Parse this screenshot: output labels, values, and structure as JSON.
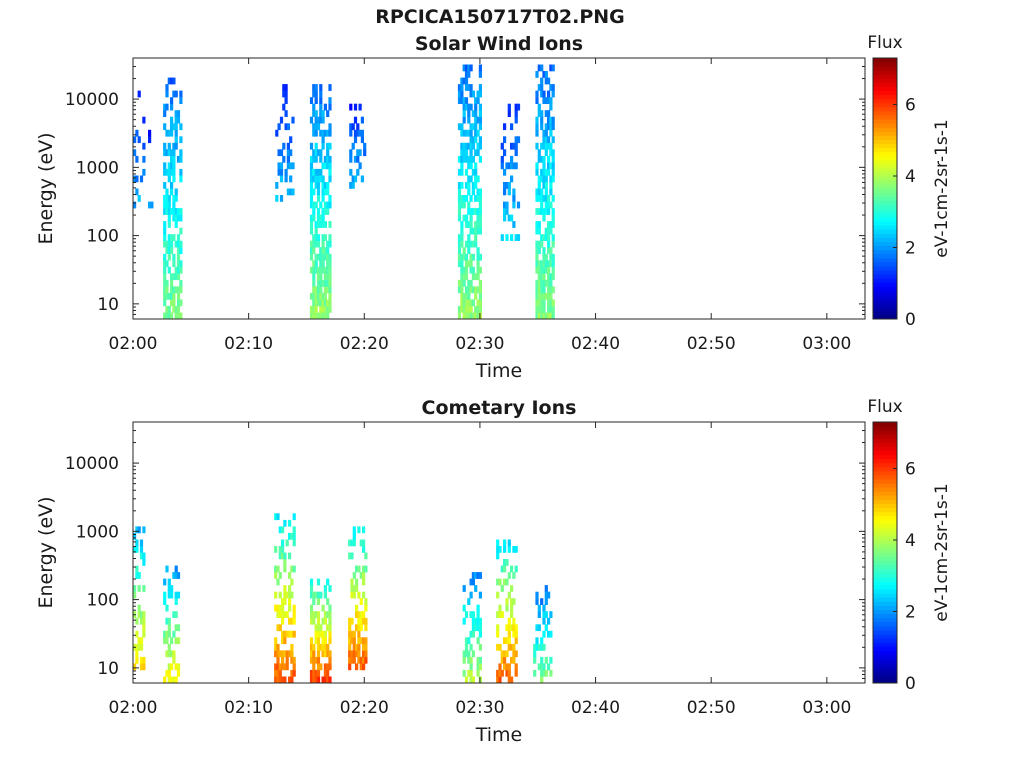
{
  "figure": {
    "title": "RPCICA150717T02.PNG"
  },
  "colors": {
    "colormap": "jet",
    "axis": "#262626",
    "background": "#ffffff"
  },
  "chart_data": [
    {
      "type": "heatmap",
      "title": "Solar Wind Ions",
      "xlabel": "Time",
      "ylabel": "Energy (eV)",
      "x_ticks": [
        "02:00",
        "02:10",
        "02:20",
        "02:30",
        "02:40",
        "02:50",
        "03:00"
      ],
      "x_range_minutes": [
        0,
        63.3
      ],
      "y_scale": "log",
      "y_range_ev": [
        6,
        40000
      ],
      "y_ticks": [
        10,
        100,
        1000,
        10000
      ],
      "y_tick_labels": [
        "10",
        "100",
        "1000",
        "10000"
      ],
      "colorbar": {
        "title": "Flux",
        "label": "eV-1cm-2sr-1s-1",
        "range": [
          0,
          7.3
        ],
        "ticks": [
          0,
          2,
          4,
          6
        ],
        "tick_labels": [
          "0",
          "2",
          "4",
          "6"
        ]
      },
      "bursts": [
        {
          "t_start": 0.0,
          "t_end": 0.9,
          "e_low": 250,
          "e_high": 12000,
          "density": 0.25,
          "peak_flux": 2.2
        },
        {
          "t_start": 1.3,
          "t_end": 1.9,
          "e_low": 250,
          "e_high": 3500,
          "density": 0.12,
          "peak_flux": 2.0
        },
        {
          "t_start": 2.6,
          "t_end": 4.2,
          "e_low": 6,
          "e_high": 20000,
          "density": 0.55,
          "peak_flux": 3.6
        },
        {
          "t_start": 12.3,
          "t_end": 13.8,
          "e_low": 300,
          "e_high": 17000,
          "density": 0.3,
          "peak_flux": 2.3
        },
        {
          "t_start": 15.3,
          "t_end": 17.0,
          "e_low": 6,
          "e_high": 16000,
          "density": 0.6,
          "peak_flux": 3.8
        },
        {
          "t_start": 18.7,
          "t_end": 20.0,
          "e_low": 450,
          "e_high": 10000,
          "density": 0.3,
          "peak_flux": 2.3
        },
        {
          "t_start": 28.1,
          "t_end": 29.9,
          "e_low": 6,
          "e_high": 30000,
          "density": 0.6,
          "peak_flux": 3.8
        },
        {
          "t_start": 31.8,
          "t_end": 33.3,
          "e_low": 80,
          "e_high": 10000,
          "density": 0.28,
          "peak_flux": 2.5
        },
        {
          "t_start": 34.8,
          "t_end": 36.3,
          "e_low": 6,
          "e_high": 26000,
          "density": 0.6,
          "peak_flux": 3.7
        }
      ]
    },
    {
      "type": "heatmap",
      "title": "Cometary Ions",
      "xlabel": "Time",
      "ylabel": "Energy (eV)",
      "x_ticks": [
        "02:00",
        "02:10",
        "02:20",
        "02:30",
        "02:40",
        "02:50",
        "03:00"
      ],
      "x_range_minutes": [
        0,
        63.3
      ],
      "y_scale": "log",
      "y_range_ev": [
        6,
        40000
      ],
      "y_ticks": [
        10,
        100,
        1000,
        10000
      ],
      "y_tick_labels": [
        "10",
        "100",
        "1000",
        "10000"
      ],
      "colorbar": {
        "title": "Flux",
        "label": "eV-1cm-2sr-1s-1",
        "range": [
          0,
          7.3
        ],
        "ticks": [
          0,
          2,
          4,
          6
        ],
        "tick_labels": [
          "0",
          "2",
          "4",
          "6"
        ]
      },
      "bursts": [
        {
          "t_start": 0.0,
          "t_end": 1.0,
          "e_low": 8,
          "e_high": 1100,
          "density": 0.4,
          "peak_flux": 4.8
        },
        {
          "t_start": 2.6,
          "t_end": 4.0,
          "e_low": 6,
          "e_high": 260,
          "density": 0.4,
          "peak_flux": 4.6
        },
        {
          "t_start": 12.2,
          "t_end": 13.8,
          "e_low": 6,
          "e_high": 1500,
          "density": 0.45,
          "peak_flux": 5.8
        },
        {
          "t_start": 15.3,
          "t_end": 16.9,
          "e_low": 6,
          "e_high": 200,
          "density": 0.55,
          "peak_flux": 5.9
        },
        {
          "t_start": 18.6,
          "t_end": 20.0,
          "e_low": 8,
          "e_high": 1000,
          "density": 0.5,
          "peak_flux": 5.9
        },
        {
          "t_start": 28.5,
          "t_end": 29.9,
          "e_low": 6,
          "e_high": 250,
          "density": 0.45,
          "peak_flux": 4.0
        },
        {
          "t_start": 31.4,
          "t_end": 33.2,
          "e_low": 6,
          "e_high": 700,
          "density": 0.4,
          "peak_flux": 5.7
        },
        {
          "t_start": 34.6,
          "t_end": 36.2,
          "e_low": 6,
          "e_high": 150,
          "density": 0.4,
          "peak_flux": 3.6
        }
      ]
    }
  ]
}
